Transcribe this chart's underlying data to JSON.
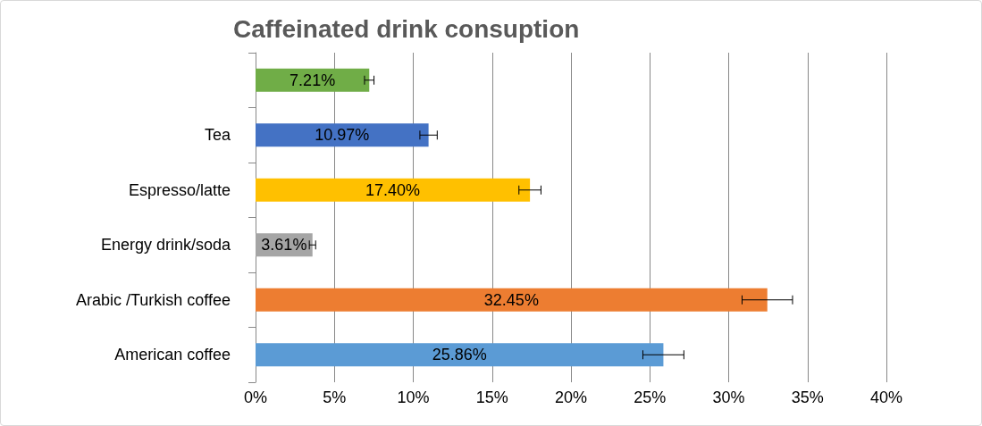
{
  "chart_data": {
    "type": "bar",
    "orientation": "horizontal",
    "title": "Caffeinated drink consuption",
    "categories": [
      null,
      "Tea",
      "Espresso/latte",
      "Energy drink/soda",
      "Arabic /Turkish coffee",
      "American coffee"
    ],
    "values": [
      7.21,
      10.97,
      17.4,
      3.61,
      32.45,
      25.86
    ],
    "colors": [
      "#70ad47",
      "#4472c4",
      "#ffc000",
      "#a5a5a5",
      "#ed7d31",
      "#5b9bd5"
    ],
    "value_labels": [
      "7.21%",
      "10.97%",
      "17.40%",
      "3.61%",
      "32.45%",
      "25.86%"
    ],
    "errors": [
      0.3,
      0.55,
      0.7,
      0.2,
      1.6,
      1.3
    ],
    "xlim": [
      0,
      40
    ],
    "xticks": [
      {
        "value": 0,
        "label": "0%"
      },
      {
        "value": 5,
        "label": "5%"
      },
      {
        "value": 10,
        "label": "10%"
      },
      {
        "value": 15,
        "label": "15%"
      },
      {
        "value": 20,
        "label": "20%"
      },
      {
        "value": 25,
        "label": "25%"
      },
      {
        "value": 30,
        "label": "30%"
      },
      {
        "value": 35,
        "label": "35%"
      },
      {
        "value": 40,
        "label": "40%"
      }
    ],
    "grid": "x"
  }
}
